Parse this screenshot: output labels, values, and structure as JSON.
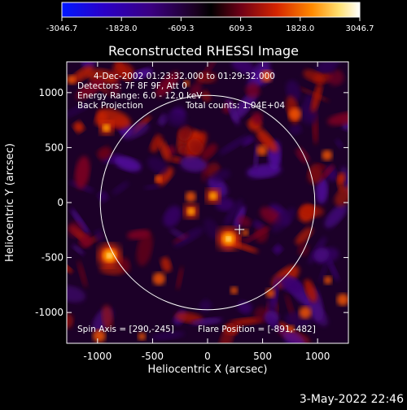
{
  "colorbar": {
    "min_label": "-3046.7",
    "ticks": [
      "-3046.7",
      "-1828.0",
      "-609.3",
      "609.3",
      "1828.0",
      "3046.7"
    ],
    "colors": [
      "#0018ff",
      "#3a00a8",
      "#30004a",
      "#000000",
      "#6e0016",
      "#d42400",
      "#ff8a00",
      "#ffe070",
      "#ffffff"
    ]
  },
  "chart_data": {
    "type": "heatmap",
    "title": "Reconstructed RHESSI Image",
    "xlabel": "Heliocentric X (arcsec)",
    "ylabel": "Heliocentric Y (arcsec)",
    "xlim": [
      -1280,
      1280
    ],
    "ylim": [
      -1280,
      1280
    ],
    "xticks": [
      "-1000",
      "-500",
      "0",
      "500",
      "1000"
    ],
    "xtick_values": [
      -1000,
      -500,
      0,
      500,
      1000
    ],
    "yticks": [
      "-1000",
      "-500",
      "0",
      "500",
      "1000"
    ],
    "ytick_values": [
      -1000,
      -500,
      0,
      500,
      1000
    ],
    "value_range": [
      -3046.7,
      3046.7
    ],
    "solar_disk_radius": 975,
    "annotations": {
      "date_range": "4-Dec-2002 01:23:32.000 to 01:29:32.000",
      "detectors": "Detectors: 7F 8F 9F, Att 0",
      "energy": "Energy Range: 6.0 - 12.0 keV",
      "method": "Back Projection",
      "counts": "Total counts: 1.04E+04",
      "spin_axis": "Spin Axis = [290,-245]",
      "flare_position": "Flare Position = [-891,-482]"
    },
    "spin_axis": [
      290,
      -245
    ],
    "bright_sources": [
      {
        "x": -891,
        "y": -482,
        "value": 3046.7
      },
      {
        "x": 190,
        "y": -330,
        "value": 2900
      },
      {
        "x": 50,
        "y": 60,
        "value": 1500
      },
      {
        "x": -150,
        "y": -80,
        "value": 1400
      },
      {
        "x": -920,
        "y": 680,
        "value": 1300
      }
    ]
  },
  "footer": {
    "date_stamp": "3-May-2022 22:46"
  }
}
